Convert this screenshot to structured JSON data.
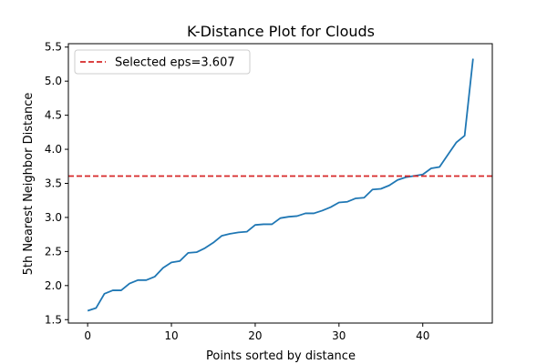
{
  "chart_data": {
    "type": "line",
    "title": "K-Distance Plot for Clouds",
    "xlabel": "Points sorted by distance",
    "ylabel": "5th Nearest Neighbor Distance",
    "xlim": [
      -2.3,
      48.3
    ],
    "ylim": [
      1.45,
      5.55
    ],
    "xticks": [
      0,
      10,
      20,
      30,
      40
    ],
    "xtick_labels": [
      "0",
      "10",
      "20",
      "30",
      "40"
    ],
    "yticks": [
      1.5,
      2.0,
      2.5,
      3.0,
      3.5,
      4.0,
      4.5,
      5.0,
      5.5
    ],
    "ytick_labels": [
      "1.5",
      "2.0",
      "2.5",
      "3.0",
      "3.5",
      "4.0",
      "4.5",
      "5.0",
      "5.5"
    ],
    "grid": false,
    "legend_position": "upper-left",
    "series": [
      {
        "color": "#1f77b4",
        "x": [
          0,
          1,
          2,
          3,
          4,
          5,
          6,
          7,
          8,
          9,
          10,
          11,
          12,
          13,
          14,
          15,
          16,
          17,
          18,
          19,
          20,
          21,
          22,
          23,
          24,
          25,
          26,
          27,
          28,
          29,
          30,
          31,
          32,
          33,
          34,
          35,
          36,
          37,
          38,
          39,
          40,
          41,
          42,
          43,
          44,
          45,
          46
        ],
        "y": [
          1.63,
          1.67,
          1.88,
          1.93,
          1.93,
          2.03,
          2.08,
          2.08,
          2.13,
          2.26,
          2.34,
          2.36,
          2.48,
          2.49,
          2.55,
          2.63,
          2.73,
          2.76,
          2.78,
          2.79,
          2.89,
          2.9,
          2.9,
          2.99,
          3.01,
          3.02,
          3.06,
          3.06,
          3.1,
          3.15,
          3.22,
          3.23,
          3.28,
          3.29,
          3.41,
          3.42,
          3.47,
          3.55,
          3.59,
          3.61,
          3.63,
          3.72,
          3.74,
          3.92,
          4.1,
          4.2,
          5.33
        ]
      }
    ],
    "threshold": {
      "value": 3.607,
      "label": "Selected eps=3.607",
      "color": "#d62728",
      "style": "dashed"
    }
  }
}
